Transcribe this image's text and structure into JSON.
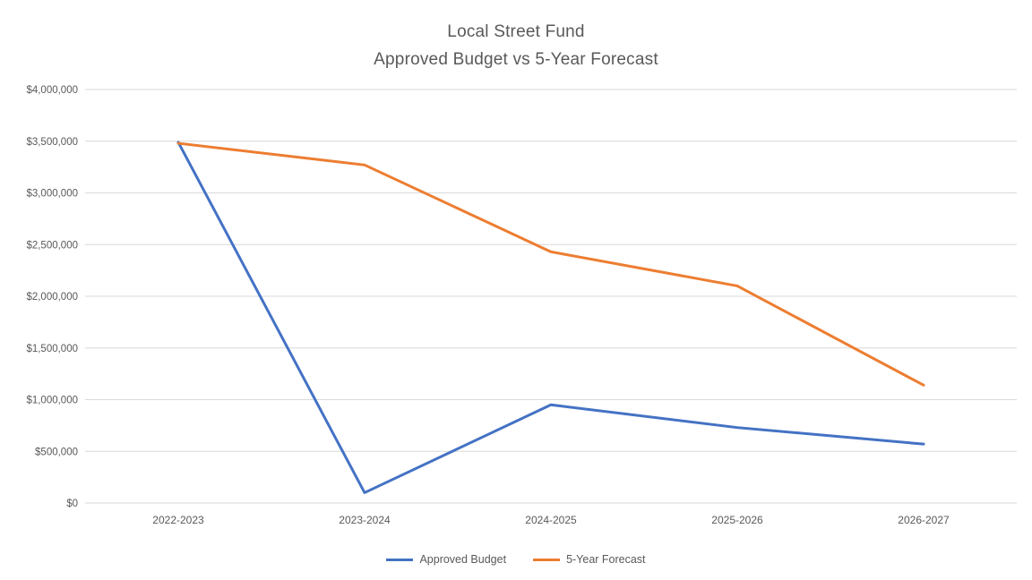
{
  "chart_data": {
    "type": "line",
    "title": "Local Street Fund",
    "subtitle": "Approved Budget vs 5-Year Forecast",
    "categories": [
      "2022-2023",
      "2023-2024",
      "2024-2025",
      "2025-2026",
      "2026-2027"
    ],
    "series": [
      {
        "name": "Approved Budget",
        "color": "#4472C4",
        "values": [
          3490000,
          100000,
          950000,
          730000,
          570000
        ]
      },
      {
        "name": "5-Year Forecast",
        "color": "#ED7D31",
        "values": [
          3480000,
          3270000,
          2430000,
          2100000,
          1140000
        ]
      }
    ],
    "xlabel": "",
    "ylabel": "",
    "ylim": [
      0,
      4000000
    ],
    "ytick_step": 500000,
    "ytick_labels": [
      "$0",
      "$500,000",
      "$1,000,000",
      "$1,500,000",
      "$2,000,000",
      "$2,500,000",
      "$3,000,000",
      "$3,500,000",
      "$4,000,000"
    ],
    "grid": "horizontal",
    "legend_position": "bottom"
  },
  "colors": {
    "grid": "#D9D9D9",
    "axis_text": "#595959",
    "title_text": "#595959",
    "background": "#FFFFFF"
  }
}
